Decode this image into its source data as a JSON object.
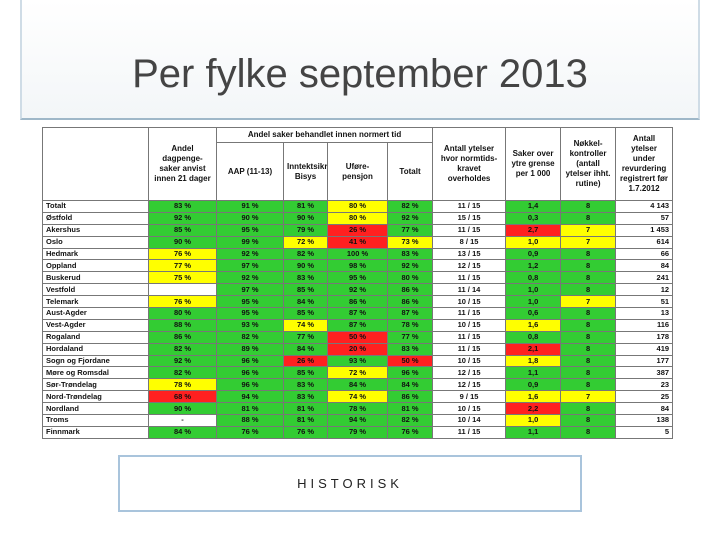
{
  "title": "Per fylke september 2013",
  "table": {
    "group_header": "Andel saker behandlet innen normert tid",
    "headers": [
      "Andel dagpenge-saker anvist innen 21 dager",
      "AAP (11-13)",
      "Inntektsikr. Bisys",
      "Uføre-pensjon",
      "Totalt",
      "Antall ytelser hvor normtids-kravet overholdes",
      "Saker over ytre grense per 1 000",
      "Nøkkel-kontroller (antall ytelser ihht. rutine)",
      "Antall ytelser under revurdering registrert før 1.7.2012"
    ],
    "rows": [
      [
        "Totalt",
        "83 %",
        "91 %",
        "81 %",
        "80 %",
        "82 %",
        "11 / 15",
        "1,4",
        "8",
        "4 143"
      ],
      [
        "Østfold",
        "92 %",
        "90 %",
        "90 %",
        "80 %",
        "92 %",
        "15 / 15",
        "0,3",
        "8",
        "57"
      ],
      [
        "Akershus",
        "85 %",
        "95 %",
        "79 %",
        "26 %",
        "77 %",
        "11 / 15",
        "2,7",
        "7",
        "1 453"
      ],
      [
        "Oslo",
        "90 %",
        "99 %",
        "72 %",
        "41 %",
        "73 %",
        "8 / 15",
        "1,0",
        "7",
        "614"
      ],
      [
        "Hedmark",
        "76 %",
        "92 %",
        "82 %",
        "100 %",
        "83 %",
        "13 / 15",
        "0,9",
        "8",
        "66"
      ],
      [
        "Oppland",
        "77 %",
        "97 %",
        "90 %",
        "98 %",
        "92 %",
        "12 / 15",
        "1,2",
        "8",
        "84"
      ],
      [
        "Buskerud",
        "75 %",
        "92 %",
        "83 %",
        "95 %",
        "80 %",
        "11 / 15",
        "0,8",
        "8",
        "241"
      ],
      [
        "Vestfold",
        null,
        "97 %",
        "85 %",
        "92 %",
        "86 %",
        "11 / 14",
        "1,0",
        "8",
        "12"
      ],
      [
        "Telemark",
        "76 %",
        "95 %",
        "84 %",
        "86 %",
        "86 %",
        "10 / 15",
        "1,0",
        "7",
        "51"
      ],
      [
        "Aust-Agder",
        "80 %",
        "95 %",
        "85 %",
        "87 %",
        "87 %",
        "11 / 15",
        "0,6",
        "8",
        "13"
      ],
      [
        "Vest-Agder",
        "88 %",
        "93 %",
        "74 %",
        "87 %",
        "78 %",
        "10 / 15",
        "1,6",
        "8",
        "116"
      ],
      [
        "Rogaland",
        "86 %",
        "82 %",
        "77 %",
        "50 %",
        "77 %",
        "11 / 15",
        "0,8",
        "8",
        "178"
      ],
      [
        "Hordaland",
        "82 %",
        "89 %",
        "84 %",
        "20 %",
        "83 %",
        "11 / 15",
        "2,1",
        "8",
        "419"
      ],
      [
        "Sogn og Fjordane",
        "92 %",
        "96 %",
        "26 %",
        "93 %",
        "50 %",
        "10 / 15",
        "1,8",
        "8",
        "177"
      ],
      [
        "Møre og Romsdal",
        "82 %",
        "96 %",
        "85 %",
        "72 %",
        "96 %",
        "12 / 15",
        "1,1",
        "8",
        "387"
      ],
      [
        "Sør-Trøndelag",
        "78 %",
        "96 %",
        "83 %",
        "84 %",
        "84 %",
        "12 / 15",
        "0,9",
        "8",
        "23"
      ],
      [
        "Nord-Trøndelag",
        "68 %",
        "94 %",
        "83 %",
        "74 %",
        "86 %",
        "9 / 15",
        "1,6",
        "7",
        "25"
      ],
      [
        "Nordland",
        "90 %",
        "81 %",
        "81 %",
        "78 %",
        "81 %",
        "10 / 15",
        "2,2",
        "8",
        "84"
      ],
      [
        "Troms",
        "-",
        "88 %",
        "81 %",
        "94 %",
        "82 %",
        "10 / 14",
        "1,0",
        "8",
        "138"
      ],
      [
        "Finnmark",
        "84 %",
        "76 %",
        "76 %",
        "79 %",
        "76 %",
        "11 / 15",
        "1,1",
        "8",
        "5"
      ]
    ],
    "cell_colors": [
      [
        "#ffffff",
        "#33cc33",
        "#33cc33",
        "#33cc33",
        "#ffff00",
        "#33cc33",
        "#ffffff",
        "#33cc33",
        "#33cc33",
        "#ffffff"
      ],
      [
        "#ffffff",
        "#33cc33",
        "#33cc33",
        "#33cc33",
        "#ffff00",
        "#33cc33",
        "#ffffff",
        "#33cc33",
        "#33cc33",
        "#ffffff"
      ],
      [
        "#ffffff",
        "#33cc33",
        "#33cc33",
        "#33cc33",
        "#ff2020",
        "#33cc33",
        "#ffffff",
        "#ff2020",
        "#ffff00",
        "#ffffff"
      ],
      [
        "#ffffff",
        "#33cc33",
        "#33cc33",
        "#ffff00",
        "#ff2020",
        "#ffff00",
        "#ffffff",
        "#ffff00",
        "#ffff00",
        "#ffffff"
      ],
      [
        "#ffffff",
        "#ffff00",
        "#33cc33",
        "#33cc33",
        "#33cc33",
        "#33cc33",
        "#ffffff",
        "#33cc33",
        "#33cc33",
        "#ffffff"
      ],
      [
        "#ffffff",
        "#ffff00",
        "#33cc33",
        "#33cc33",
        "#33cc33",
        "#33cc33",
        "#ffffff",
        "#33cc33",
        "#33cc33",
        "#ffffff"
      ],
      [
        "#ffffff",
        "#ffff00",
        "#33cc33",
        "#33cc33",
        "#33cc33",
        "#33cc33",
        "#ffffff",
        "#33cc33",
        "#33cc33",
        "#ffffff"
      ],
      [
        "#ffffff",
        "#ffffff",
        "#33cc33",
        "#33cc33",
        "#33cc33",
        "#33cc33",
        "#ffffff",
        "#33cc33",
        "#33cc33",
        "#ffffff"
      ],
      [
        "#ffffff",
        "#ffff00",
        "#33cc33",
        "#33cc33",
        "#33cc33",
        "#33cc33",
        "#ffffff",
        "#33cc33",
        "#ffff00",
        "#ffffff"
      ],
      [
        "#ffffff",
        "#33cc33",
        "#33cc33",
        "#33cc33",
        "#33cc33",
        "#33cc33",
        "#ffffff",
        "#33cc33",
        "#33cc33",
        "#ffffff"
      ],
      [
        "#ffffff",
        "#33cc33",
        "#33cc33",
        "#ffff00",
        "#33cc33",
        "#33cc33",
        "#ffffff",
        "#ffff00",
        "#33cc33",
        "#ffffff"
      ],
      [
        "#ffffff",
        "#33cc33",
        "#33cc33",
        "#33cc33",
        "#ff2020",
        "#33cc33",
        "#ffffff",
        "#33cc33",
        "#33cc33",
        "#ffffff"
      ],
      [
        "#ffffff",
        "#33cc33",
        "#33cc33",
        "#33cc33",
        "#ff2020",
        "#33cc33",
        "#ffffff",
        "#ff2020",
        "#33cc33",
        "#ffffff"
      ],
      [
        "#ffffff",
        "#33cc33",
        "#33cc33",
        "#ff2020",
        "#33cc33",
        "#ff2020",
        "#ffffff",
        "#ffff00",
        "#33cc33",
        "#ffffff"
      ],
      [
        "#ffffff",
        "#33cc33",
        "#33cc33",
        "#33cc33",
        "#ffff00",
        "#33cc33",
        "#ffffff",
        "#33cc33",
        "#33cc33",
        "#ffffff"
      ],
      [
        "#ffffff",
        "#ffff00",
        "#33cc33",
        "#33cc33",
        "#33cc33",
        "#33cc33",
        "#ffffff",
        "#33cc33",
        "#33cc33",
        "#ffffff"
      ],
      [
        "#ffffff",
        "#ff2020",
        "#33cc33",
        "#33cc33",
        "#ffff00",
        "#33cc33",
        "#ffffff",
        "#ffff00",
        "#ffff00",
        "#ffffff"
      ],
      [
        "#ffffff",
        "#33cc33",
        "#33cc33",
        "#33cc33",
        "#33cc33",
        "#33cc33",
        "#ffffff",
        "#ff2020",
        "#33cc33",
        "#ffffff"
      ],
      [
        "#ffffff",
        "#ffffff",
        "#33cc33",
        "#33cc33",
        "#33cc33",
        "#33cc33",
        "#ffffff",
        "#ffff00",
        "#33cc33",
        "#ffffff"
      ],
      [
        "#ffffff",
        "#33cc33",
        "#33cc33",
        "#33cc33",
        "#33cc33",
        "#33cc33",
        "#ffffff",
        "#33cc33",
        "#33cc33",
        "#ffffff"
      ]
    ]
  },
  "footer_box": "HISTORISK"
}
